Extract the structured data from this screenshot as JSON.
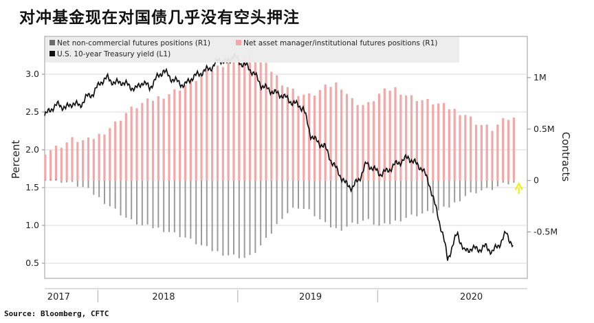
{
  "page_title": "对冲基金现在对国债几乎没有空头押注",
  "source": "Source: Bloomberg, CFTC",
  "colors": {
    "institutional_bar": "#f4a7a7",
    "noncommercial_bar": "#9a9a9a",
    "yield_line": "#111111",
    "arrow": "#f0f000",
    "plot_bg": "#ffffff",
    "legend_bg": "#ececec",
    "axis": "#888888"
  },
  "chart_data": {
    "type": "bar",
    "title": "",
    "left_axis": {
      "label": "Percent",
      "range": [
        0.3,
        3.5
      ],
      "ticks": [
        0.5,
        1.0,
        1.5,
        2.0,
        2.5,
        3.0
      ],
      "tick_labels": [
        "0.5",
        "1.0",
        "1.5",
        "2.0",
        "2.5",
        "3.0"
      ]
    },
    "right_axis": {
      "label": "Contracts",
      "range": [
        -0.95,
        1.4
      ],
      "ticks": [
        -0.5,
        0,
        0.5,
        1.0
      ],
      "tick_labels": [
        "-0.5M",
        "0",
        "0.5M",
        "1M"
      ],
      "unit": "million contracts"
    },
    "x_axis": {
      "range": [
        2017.0,
        2020.45
      ],
      "year_labels": [
        "2017",
        "2018",
        "2019",
        "2020"
      ],
      "label_positions": [
        2017.1,
        2017.85,
        2018.9,
        2020.05
      ],
      "separators": [
        2017.38,
        2018.38,
        2019.38
      ]
    },
    "grid": true,
    "legend": {
      "placement": "top-left",
      "entries": [
        {
          "name": "Net non-commercial futures positions  (R1)",
          "color": "#6b6b6b"
        },
        {
          "name": "Net asset manager/institutional futures positions  (R1)",
          "color": "#f4a7a7"
        },
        {
          "name": "U.S. 10-year Treasury yield (L1)",
          "color": "#111111"
        }
      ]
    },
    "series": [
      {
        "name": "Net non-commercial futures positions  (R1)",
        "axis": "right",
        "points": [
          [
            2017.0,
            0.03
          ],
          [
            2017.1,
            0.0
          ],
          [
            2017.2,
            -0.03
          ],
          [
            2017.3,
            -0.08
          ],
          [
            2017.4,
            -0.18
          ],
          [
            2017.5,
            -0.28
          ],
          [
            2017.6,
            -0.38
          ],
          [
            2017.7,
            -0.44
          ],
          [
            2017.8,
            -0.46
          ],
          [
            2017.9,
            -0.5
          ],
          [
            2018.0,
            -0.55
          ],
          [
            2018.1,
            -0.62
          ],
          [
            2018.2,
            -0.68
          ],
          [
            2018.3,
            -0.72
          ],
          [
            2018.4,
            -0.74
          ],
          [
            2018.45,
            -0.76
          ],
          [
            2018.5,
            -0.7
          ],
          [
            2018.6,
            -0.55
          ],
          [
            2018.7,
            -0.35
          ],
          [
            2018.8,
            -0.25
          ],
          [
            2018.9,
            -0.3
          ],
          [
            2019.0,
            -0.42
          ],
          [
            2019.1,
            -0.48
          ],
          [
            2019.2,
            -0.42
          ],
          [
            2019.3,
            -0.38
          ],
          [
            2019.4,
            -0.45
          ],
          [
            2019.5,
            -0.4
          ],
          [
            2019.6,
            -0.35
          ],
          [
            2019.7,
            -0.32
          ],
          [
            2019.8,
            -0.3
          ],
          [
            2019.9,
            -0.25
          ],
          [
            2020.0,
            -0.15
          ],
          [
            2020.1,
            -0.1
          ],
          [
            2020.2,
            -0.08
          ],
          [
            2020.3,
            -0.03
          ]
        ]
      },
      {
        "name": "Net asset manager/institutional futures positions  (R1)",
        "axis": "right",
        "points": [
          [
            2017.0,
            0.28
          ],
          [
            2017.1,
            0.33
          ],
          [
            2017.2,
            0.4
          ],
          [
            2017.3,
            0.38
          ],
          [
            2017.4,
            0.45
          ],
          [
            2017.5,
            0.55
          ],
          [
            2017.6,
            0.68
          ],
          [
            2017.7,
            0.75
          ],
          [
            2017.8,
            0.8
          ],
          [
            2017.9,
            0.85
          ],
          [
            2018.0,
            0.92
          ],
          [
            2018.1,
            1.0
          ],
          [
            2018.2,
            1.08
          ],
          [
            2018.3,
            1.15
          ],
          [
            2018.4,
            1.2
          ],
          [
            2018.45,
            1.22
          ],
          [
            2018.5,
            1.18
          ],
          [
            2018.6,
            1.1
          ],
          [
            2018.7,
            0.95
          ],
          [
            2018.8,
            0.85
          ],
          [
            2018.9,
            0.82
          ],
          [
            2019.0,
            0.9
          ],
          [
            2019.1,
            0.95
          ],
          [
            2019.2,
            0.78
          ],
          [
            2019.3,
            0.72
          ],
          [
            2019.4,
            0.85
          ],
          [
            2019.5,
            0.9
          ],
          [
            2019.6,
            0.82
          ],
          [
            2019.7,
            0.78
          ],
          [
            2019.8,
            0.75
          ],
          [
            2019.9,
            0.7
          ],
          [
            2020.0,
            0.65
          ],
          [
            2020.1,
            0.55
          ],
          [
            2020.2,
            0.5
          ],
          [
            2020.3,
            0.6
          ]
        ]
      },
      {
        "name": "U.S. 10-year Treasury yield (L1)",
        "axis": "left",
        "points": [
          [
            2017.0,
            2.45
          ],
          [
            2017.05,
            2.55
          ],
          [
            2017.1,
            2.6
          ],
          [
            2017.15,
            2.55
          ],
          [
            2017.2,
            2.62
          ],
          [
            2017.25,
            2.58
          ],
          [
            2017.3,
            2.7
          ],
          [
            2017.35,
            2.75
          ],
          [
            2017.4,
            2.9
          ],
          [
            2017.45,
            2.95
          ],
          [
            2017.5,
            2.88
          ],
          [
            2017.55,
            2.9
          ],
          [
            2017.6,
            2.85
          ],
          [
            2017.65,
            2.8
          ],
          [
            2017.7,
            2.9
          ],
          [
            2017.75,
            2.82
          ],
          [
            2017.8,
            2.95
          ],
          [
            2017.85,
            3.05
          ],
          [
            2017.9,
            2.95
          ],
          [
            2017.95,
            2.9
          ],
          [
            2018.0,
            2.85
          ],
          [
            2018.05,
            2.95
          ],
          [
            2018.1,
            3.0
          ],
          [
            2018.15,
            3.05
          ],
          [
            2018.2,
            3.1
          ],
          [
            2018.25,
            3.2
          ],
          [
            2018.3,
            3.15
          ],
          [
            2018.35,
            3.25
          ],
          [
            2018.4,
            3.15
          ],
          [
            2018.45,
            3.1
          ],
          [
            2018.5,
            3.0
          ],
          [
            2018.55,
            2.85
          ],
          [
            2018.6,
            2.8
          ],
          [
            2018.65,
            2.75
          ],
          [
            2018.7,
            2.72
          ],
          [
            2018.75,
            2.65
          ],
          [
            2018.8,
            2.6
          ],
          [
            2018.85,
            2.55
          ],
          [
            2018.9,
            2.2
          ],
          [
            2018.95,
            2.1
          ],
          [
            2019.0,
            2.05
          ],
          [
            2019.05,
            1.85
          ],
          [
            2019.1,
            1.7
          ],
          [
            2019.15,
            1.55
          ],
          [
            2019.2,
            1.5
          ],
          [
            2019.25,
            1.62
          ],
          [
            2019.3,
            1.82
          ],
          [
            2019.35,
            1.75
          ],
          [
            2019.4,
            1.68
          ],
          [
            2019.45,
            1.72
          ],
          [
            2019.5,
            1.8
          ],
          [
            2019.55,
            1.85
          ],
          [
            2019.6,
            1.9
          ],
          [
            2019.65,
            1.82
          ],
          [
            2019.7,
            1.75
          ],
          [
            2019.75,
            1.55
          ],
          [
            2019.8,
            1.2
          ],
          [
            2019.85,
            0.85
          ],
          [
            2019.88,
            0.55
          ],
          [
            2019.95,
            0.9
          ],
          [
            2020.0,
            0.65
          ],
          [
            2020.05,
            0.7
          ],
          [
            2020.1,
            0.68
          ],
          [
            2020.15,
            0.72
          ],
          [
            2020.2,
            0.65
          ],
          [
            2020.25,
            0.75
          ],
          [
            2020.3,
            0.9
          ],
          [
            2020.35,
            0.72
          ]
        ]
      }
    ],
    "annotations": [
      {
        "type": "arrow",
        "x": 2020.35,
        "from_value": -0.13,
        "to_value": -0.03,
        "color": "#f0f000"
      }
    ]
  }
}
